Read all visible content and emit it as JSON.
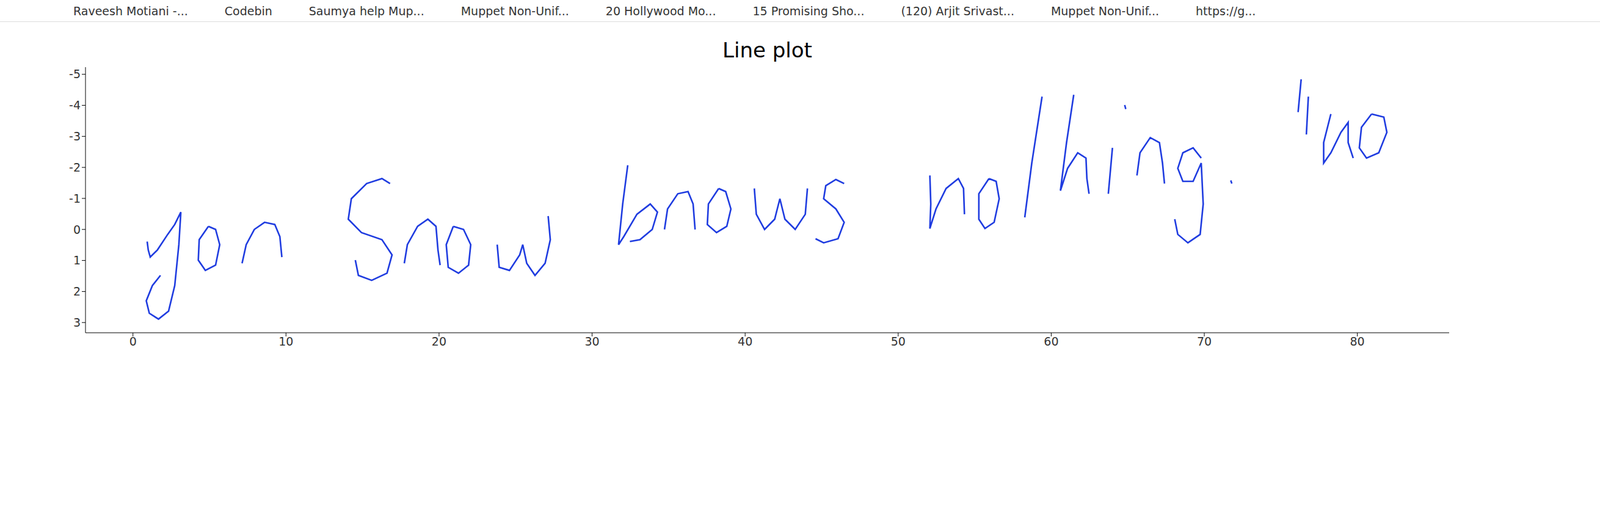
{
  "bookmarks": [
    "Raveesh Motiani -...",
    "Codebin",
    "Saumya help Mup...",
    "Muppet Non-Unif...",
    "20 Hollywood Mo...",
    "15 Promising Sho...",
    "(120) Arjit Srivast...",
    "Muppet Non-Unif...",
    "https://g..."
  ],
  "chart_data": {
    "type": "line",
    "title": "Line plot",
    "color": "#1f3ce0",
    "grid": false,
    "xlim": [
      -3.1,
      86
    ],
    "ylim": [
      3.33,
      -5.23
    ],
    "xticks": [
      0,
      10,
      20,
      30,
      40,
      50,
      60,
      70,
      80
    ],
    "yticks": [
      -5,
      -4,
      -3,
      -2,
      -1,
      0,
      1,
      2,
      3
    ],
    "x": [
      0.93,
      1.0,
      1.13,
      1.6,
      2.27,
      2.73,
      3.13,
      3.0,
      2.73,
      2.33,
      1.67,
      1.07,
      0.87,
      1.27,
      1.8,
      null,
      4.93,
      4.33,
      4.27,
      4.73,
      5.4,
      5.67,
      5.4,
      4.93,
      null,
      7.13,
      7.4,
      7.93,
      8.6,
      9.27,
      9.6,
      9.73,
      null,
      16.8,
      16.27,
      15.27,
      14.27,
      14.07,
      14.93,
      16.27,
      16.93,
      16.6,
      15.6,
      14.73,
      14.53,
      null,
      17.73,
      17.93,
      18.6,
      19.27,
      19.8,
      19.93,
      20.07,
      null,
      20.93,
      20.47,
      20.6,
      21.27,
      21.93,
      22.07,
      21.6,
      20.93,
      null,
      23.8,
      23.93,
      24.6,
      25.27,
      25.47,
      25.73,
      26.27,
      26.93,
      27.27,
      27.13,
      null,
      32.33,
      32.0,
      31.73,
      32.07,
      32.93,
      33.8,
      34.27,
      33.93,
      33.13,
      32.47,
      null,
      34.73,
      34.93,
      35.6,
      36.27,
      36.6,
      36.73,
      null,
      38.27,
      37.6,
      37.53,
      38.13,
      38.8,
      39.07,
      38.73,
      38.27,
      null,
      40.6,
      40.73,
      41.27,
      41.93,
      42.27,
      42.6,
      43.27,
      43.93,
      44.07,
      null,
      46.47,
      45.93,
      45.27,
      45.13,
      45.93,
      46.47,
      46.07,
      45.13,
      44.6,
      null,
      52.07,
      52.13,
      52.07,
      52.47,
      53.13,
      53.93,
      54.27,
      54.33,
      null,
      55.93,
      55.27,
      55.27,
      55.67,
      56.27,
      56.6,
      56.4,
      55.93,
      null,
      59.4,
      58.73,
      58.27,
      null,
      61.47,
      61.0,
      60.6,
      61.07,
      61.73,
      62.27,
      62.33,
      62.47,
      null,
      63.73,
      64.0,
      null,
      64.8,
      64.87,
      null,
      65.6,
      65.8,
      66.47,
      67.07,
      67.27,
      67.4,
      null,
      69.8,
      69.27,
      68.6,
      68.27,
      68.6,
      69.27,
      69.8,
      69.93,
      69.73,
      68.93,
      68.27,
      68.07,
      null,
      71.73,
      71.8,
      null,
      76.33,
      76.13,
      null,
      76.8,
      76.67,
      null,
      78.27,
      77.8,
      77.8,
      78.27,
      78.93,
      79.4,
      79.4,
      79.73,
      null,
      80.93,
      80.27,
      80.13,
      80.6,
      81.4,
      81.93,
      81.73,
      80.93
    ],
    "values": [
      0.39,
      0.66,
      0.89,
      0.66,
      0.16,
      -0.16,
      -0.56,
      0.49,
      1.81,
      2.63,
      2.89,
      2.7,
      2.3,
      1.81,
      1.48,
      null,
      -0.1,
      0.33,
      0.99,
      1.32,
      1.15,
      0.49,
      0.0,
      -0.1,
      null,
      1.09,
      0.49,
      0.0,
      -0.23,
      -0.16,
      0.23,
      0.89,
      null,
      -1.48,
      -1.64,
      -1.48,
      -0.99,
      -0.33,
      0.1,
      0.33,
      0.82,
      1.41,
      1.64,
      1.48,
      0.99,
      null,
      1.09,
      0.49,
      -0.1,
      -0.33,
      -0.1,
      0.66,
      1.15,
      null,
      -0.1,
      0.49,
      1.22,
      1.41,
      1.15,
      0.49,
      0.0,
      -0.1,
      null,
      0.49,
      1.22,
      1.32,
      0.82,
      0.49,
      1.09,
      1.48,
      1.09,
      0.33,
      -0.43,
      null,
      -2.07,
      -0.82,
      0.49,
      0.23,
      -0.49,
      -0.82,
      -0.56,
      0.0,
      0.33,
      0.39,
      null,
      0.0,
      -0.66,
      -1.15,
      -1.22,
      -0.82,
      0.0,
      null,
      -1.32,
      -0.82,
      -0.16,
      0.1,
      -0.1,
      -0.66,
      -1.22,
      -1.32,
      null,
      -1.32,
      -0.49,
      0.0,
      -0.33,
      -0.99,
      -0.33,
      0.0,
      -0.49,
      -1.32,
      null,
      -1.48,
      -1.61,
      -1.41,
      -0.99,
      -0.66,
      -0.23,
      0.3,
      0.43,
      0.3,
      null,
      -1.74,
      -0.82,
      -0.03,
      -0.66,
      -1.32,
      -1.64,
      -1.32,
      -0.49,
      null,
      -1.64,
      -1.15,
      -0.33,
      -0.03,
      -0.23,
      -0.99,
      -1.55,
      -1.64,
      null,
      -4.28,
      -2.14,
      -0.39,
      null,
      -4.34,
      -2.8,
      -1.25,
      -1.97,
      -2.47,
      -2.3,
      -1.64,
      -1.15,
      null,
      -1.15,
      -2.63,
      null,
      -4.01,
      -3.88,
      null,
      -1.74,
      -2.47,
      -2.96,
      -2.8,
      -2.14,
      -1.48,
      null,
      -2.3,
      -2.63,
      -2.47,
      -1.97,
      -1.55,
      -1.55,
      -2.14,
      -0.82,
      0.16,
      0.43,
      0.16,
      -0.33,
      null,
      -1.58,
      -1.48,
      null,
      -4.84,
      -3.78,
      null,
      -4.28,
      -3.06,
      null,
      -3.72,
      -2.8,
      -2.14,
      -2.47,
      -3.13,
      -3.45,
      -2.8,
      -2.3,
      null,
      -3.72,
      -3.29,
      -2.63,
      -2.3,
      -2.47,
      -3.13,
      -3.62,
      -3.72
    ]
  }
}
